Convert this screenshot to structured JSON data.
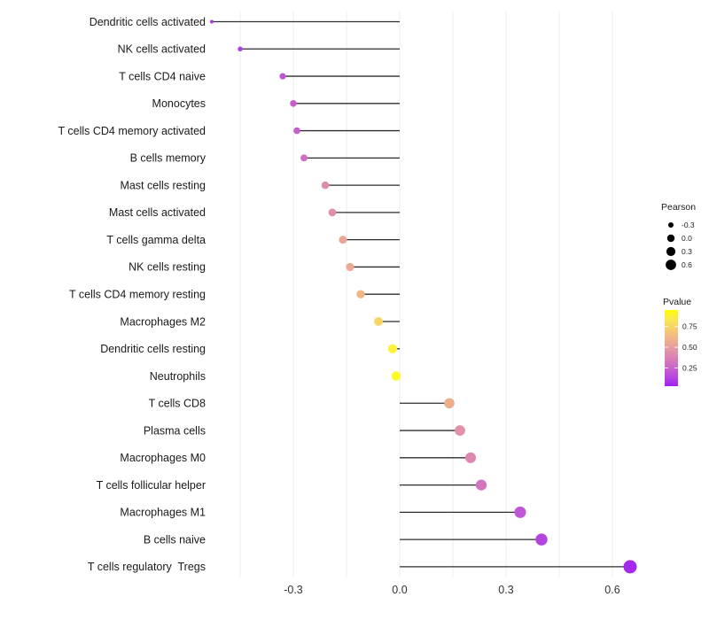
{
  "chart_data": {
    "type": "lollipop",
    "title": "",
    "xlabel": "",
    "ylabel": "",
    "categories": [
      "Dendritic cells activated",
      "NK cells activated",
      "T cells CD4 naive",
      "Monocytes",
      "T cells CD4 memory activated",
      "B cells memory",
      "Mast cells resting",
      "Mast cells activated",
      "T cells gamma delta",
      "NK cells resting",
      "T cells CD4 memory resting",
      "Macrophages M2",
      "Dendritic cells resting",
      "Neutrophils",
      "T cells CD8",
      "Plasma cells",
      "Macrophages M0",
      "T cells follicular helper",
      "Macrophages M1",
      "B cells naive",
      "T cells regulatory  Tregs"
    ],
    "series": [
      {
        "name": "Pearson",
        "values": [
          -0.53,
          -0.45,
          -0.33,
          -0.3,
          -0.29,
          -0.27,
          -0.21,
          -0.19,
          -0.16,
          -0.14,
          -0.11,
          -0.06,
          -0.02,
          -0.01,
          0.14,
          0.17,
          0.2,
          0.23,
          0.34,
          0.4,
          0.65
        ]
      },
      {
        "name": "Pvalue",
        "values": [
          0.08,
          0.11,
          0.19,
          0.23,
          0.23,
          0.29,
          0.42,
          0.43,
          0.54,
          0.56,
          0.62,
          0.76,
          0.89,
          0.92,
          0.58,
          0.45,
          0.41,
          0.32,
          0.2,
          0.13,
          0.05
        ]
      }
    ],
    "xlim": [
      -0.586,
      0.704
    ],
    "x_ticks": {
      "values": [
        -0.3,
        0.0,
        0.3,
        0.6
      ],
      "labels": [
        "-0.3",
        "0.0",
        "0.3",
        "0.6"
      ]
    },
    "x_minor_ticks": [
      -0.45,
      -0.15,
      0.15,
      0.45
    ],
    "grid": "vertical",
    "legend_position": "right",
    "size_legend": {
      "title": "Pearson",
      "values": [
        -0.3,
        0.0,
        0.3,
        0.6
      ],
      "labels": [
        "-0.3",
        "0.0",
        "0.3",
        "0.6"
      ]
    },
    "color_legend": {
      "title": "Pvalue",
      "tick_values": [
        0.75,
        0.5,
        0.25
      ],
      "tick_labels": [
        "0.75",
        "0.50",
        "0.25"
      ],
      "low_color": "#A020F0",
      "high_color": "#FFFF00",
      "domain": [
        0.03,
        0.95
      ]
    },
    "colors": {
      "stem": "#2e2e2e",
      "gridline": "#ececec",
      "axis_text": "#333333",
      "label_text": "#1a1a1a",
      "legend_dot": "#000000",
      "background": "#ffffff"
    }
  }
}
